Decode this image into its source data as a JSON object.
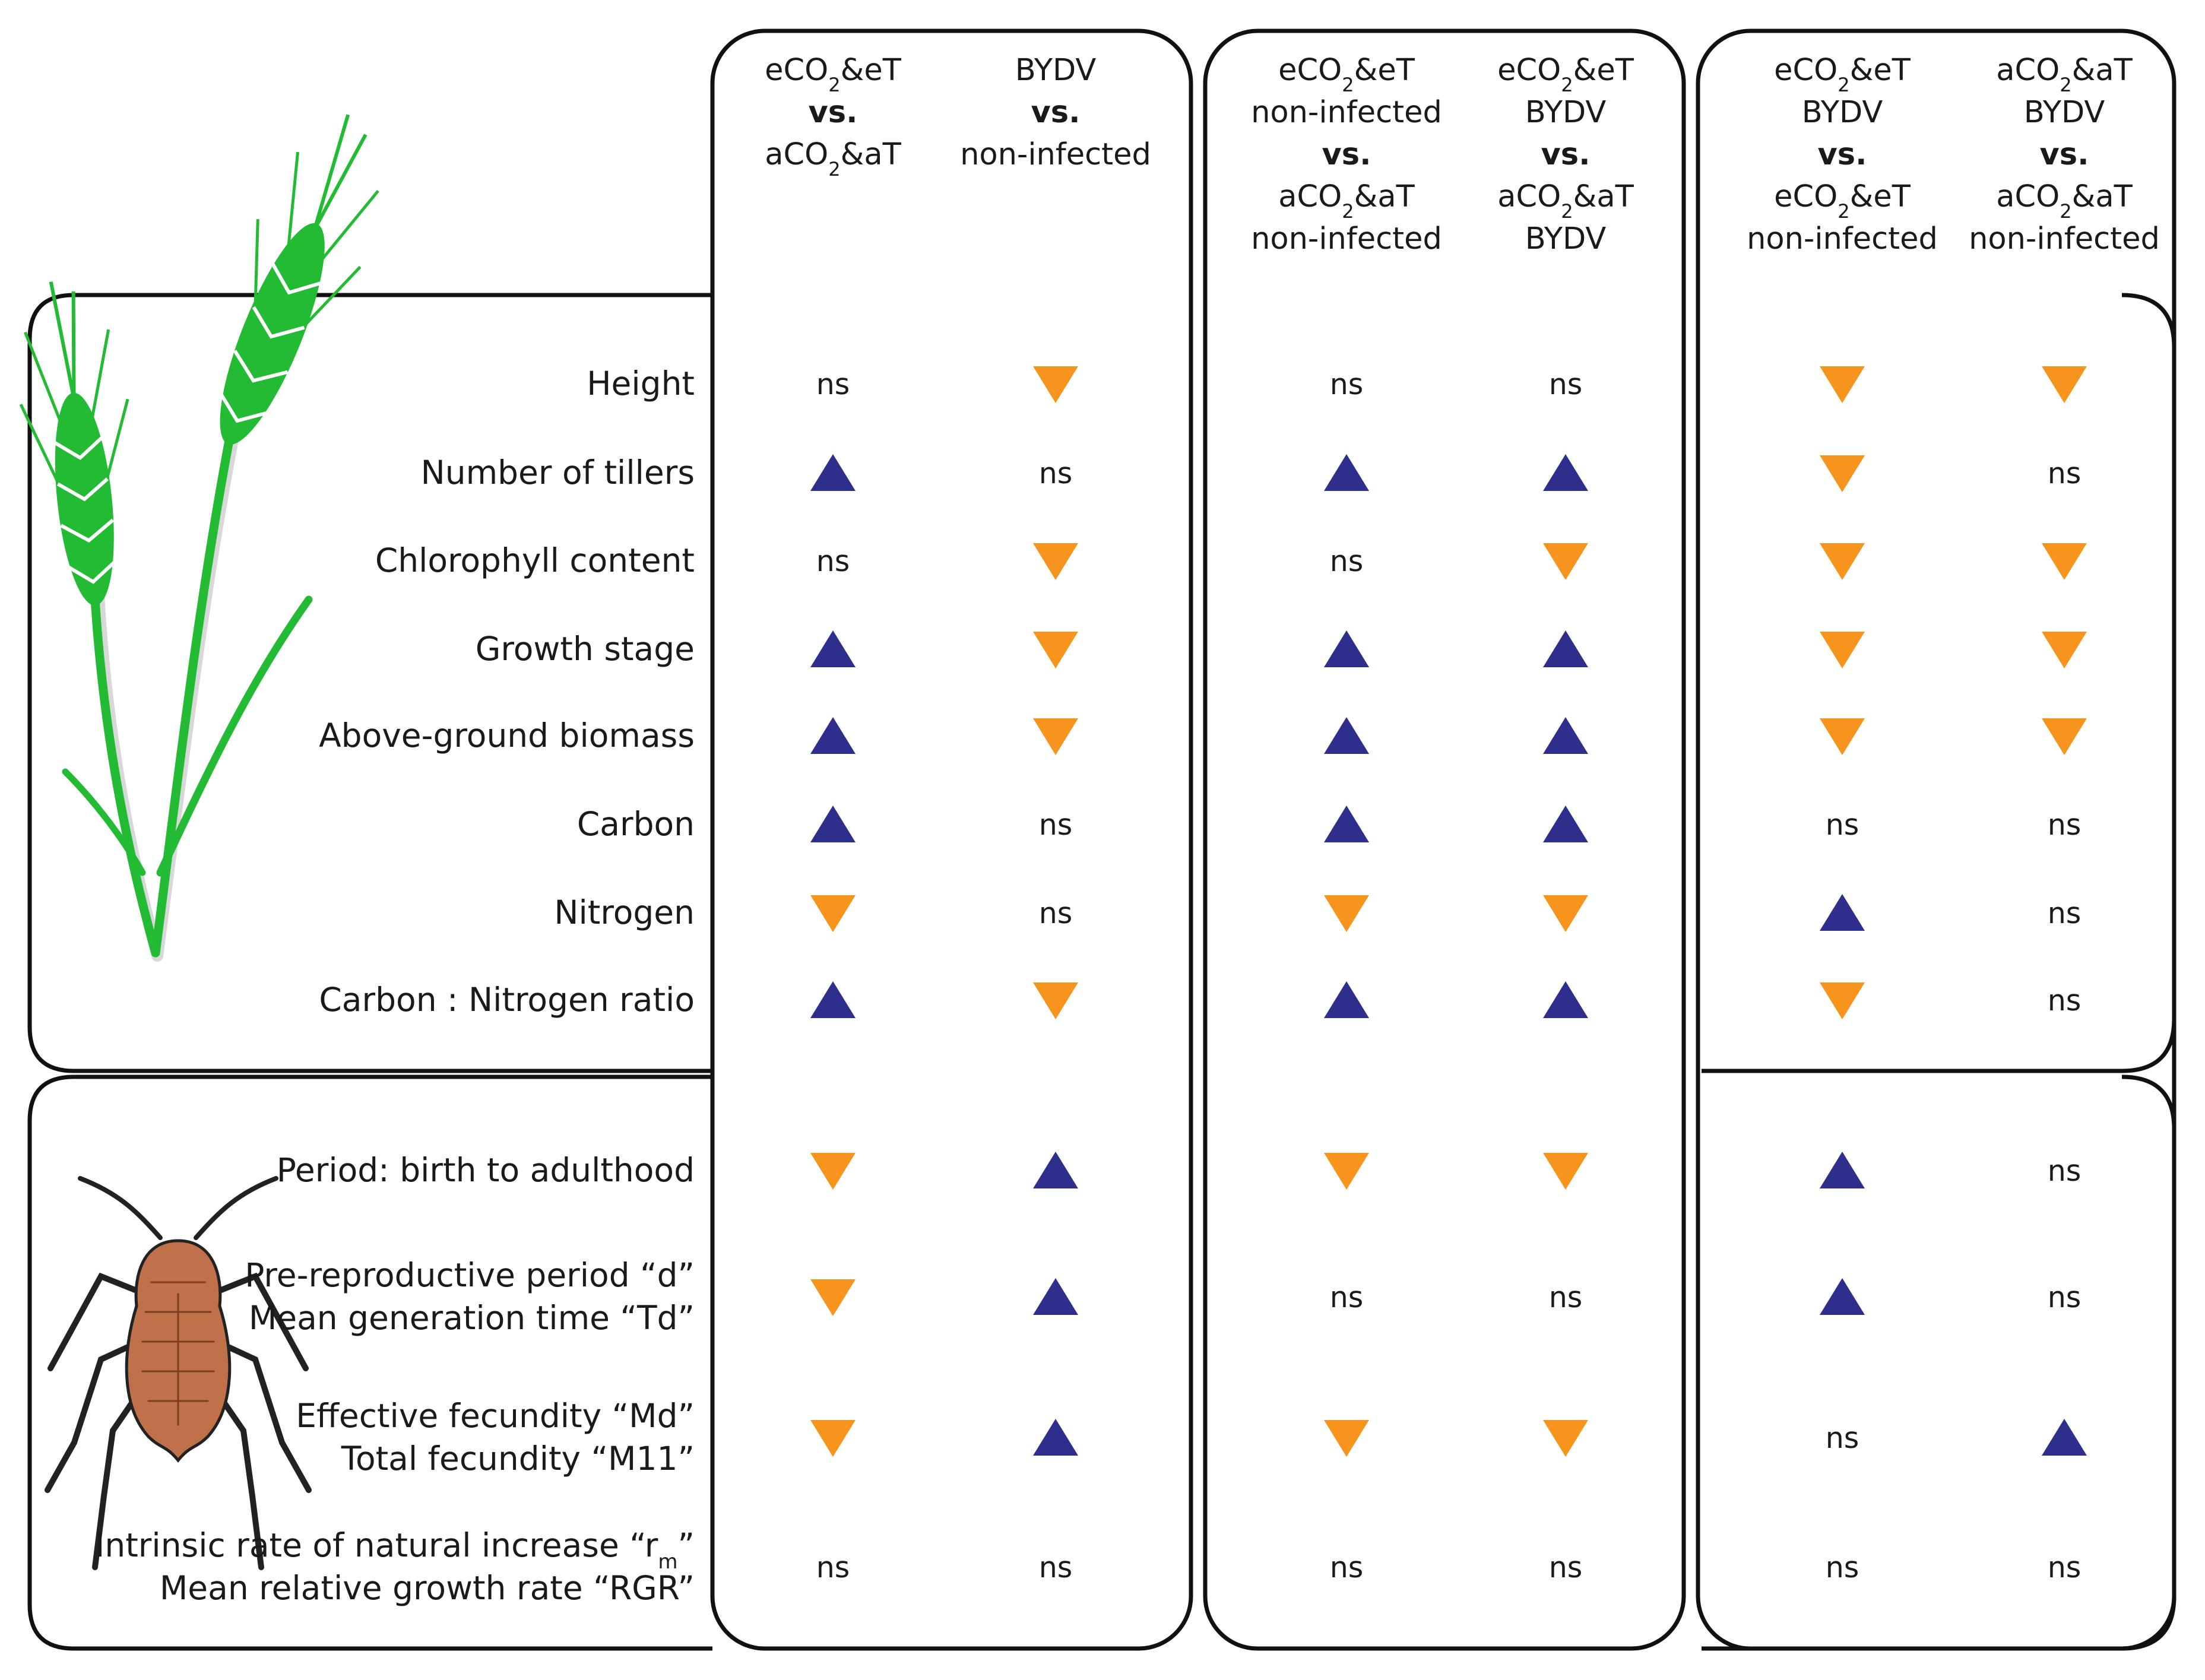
{
  "colors": {
    "increase": "#2e2e8c",
    "decrease": "#f7941d",
    "wheat": "#22bb33",
    "aphid": "#c0714a"
  },
  "comparisons": [
    {
      "a": [
        "eCO2&eT"
      ],
      "b": [
        "aCO2&aT"
      ],
      "vs": "vs."
    },
    {
      "a": [
        "BYDV"
      ],
      "b": [
        "non-infected"
      ],
      "vs": "vs."
    },
    {
      "a": [
        "eCO2&eT",
        "non-infected"
      ],
      "b": [
        "aCO2&aT",
        "non-infected"
      ],
      "vs": "vs."
    },
    {
      "a": [
        "eCO2&eT",
        "BYDV"
      ],
      "b": [
        "aCO2&aT",
        "BYDV"
      ],
      "vs": "vs."
    },
    {
      "a": [
        "eCO2&eT",
        "BYDV"
      ],
      "b": [
        "eCO2&eT",
        "non-infected"
      ],
      "vs": "vs."
    },
    {
      "a": [
        "aCO2&aT",
        "BYDV"
      ],
      "b": [
        "aCO2&aT",
        "non-infected"
      ],
      "vs": "vs."
    }
  ],
  "plant_section": {
    "icon": "wheat-icon",
    "rows": [
      {
        "label": [
          "Height"
        ],
        "results": [
          "ns",
          "down",
          "ns",
          "ns",
          "down",
          "down"
        ]
      },
      {
        "label": [
          "Number of tillers"
        ],
        "results": [
          "up",
          "ns",
          "up",
          "up",
          "down",
          "ns"
        ]
      },
      {
        "label": [
          "Chlorophyll content"
        ],
        "results": [
          "ns",
          "down",
          "ns",
          "down",
          "down",
          "down"
        ]
      },
      {
        "label": [
          "Growth stage"
        ],
        "results": [
          "up",
          "down",
          "up",
          "up",
          "down",
          "down"
        ]
      },
      {
        "label": [
          "Above-ground biomass"
        ],
        "results": [
          "up",
          "down",
          "up",
          "up",
          "down",
          "down"
        ]
      },
      {
        "label": [
          "Carbon"
        ],
        "results": [
          "up",
          "ns",
          "up",
          "up",
          "ns",
          "ns"
        ]
      },
      {
        "label": [
          "Nitrogen"
        ],
        "results": [
          "down",
          "ns",
          "down",
          "down",
          "up",
          "ns"
        ]
      },
      {
        "label": [
          "Carbon : Nitrogen ratio"
        ],
        "results": [
          "up",
          "down",
          "up",
          "up",
          "down",
          "ns"
        ]
      }
    ]
  },
  "aphid_section": {
    "icon": "aphid-icon",
    "rows": [
      {
        "label": [
          "Period: birth to adulthood"
        ],
        "results": [
          "down",
          "up",
          "down",
          "down",
          "up",
          "ns"
        ]
      },
      {
        "label": [
          "Pre-reproductive period “d”",
          "Mean generation time “Td”"
        ],
        "results": [
          "down",
          "up",
          "ns",
          "ns",
          "up",
          "ns"
        ]
      },
      {
        "label": [
          "Effective fecundity “Md”",
          "Total fecundity “M11”"
        ],
        "results": [
          "down",
          "up",
          "down",
          "down",
          "ns",
          "up"
        ]
      },
      {
        "label": [
          "Intrinsic rate of natural increase “rm”",
          "Mean relative growth rate “RGR”"
        ],
        "results": [
          "ns",
          "ns",
          "ns",
          "ns",
          "ns",
          "ns"
        ]
      }
    ]
  }
}
